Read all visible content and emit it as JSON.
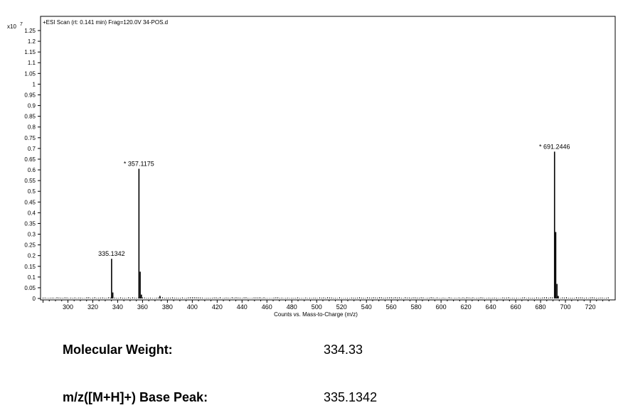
{
  "chart_data": {
    "type": "bar",
    "title": "+ESI Scan (rt: 0.141 min) Frag=120.0V 34-POS.d",
    "xlabel": "Counts vs. Mass-to-Charge (m/z)",
    "ylabel": "",
    "y_multiplier_label": "x10",
    "y_multiplier_exponent": "7",
    "xlim": [
      278,
      740
    ],
    "ylim": [
      0,
      1.25
    ],
    "x_ticks": [
      300,
      320,
      340,
      360,
      380,
      400,
      420,
      440,
      460,
      480,
      500,
      520,
      540,
      560,
      580,
      600,
      620,
      640,
      660,
      680,
      700,
      720
    ],
    "y_ticks": [
      "0",
      "0.05",
      "0.1",
      "0.15",
      "0.2",
      "0.25",
      "0.3",
      "0.35",
      "0.4",
      "0.45",
      "0.5",
      "0.55",
      "0.6",
      "0.65",
      "0.7",
      "0.75",
      "0.8",
      "0.85",
      "0.9",
      "0.95",
      "1",
      "1.05",
      "1.1",
      "1.15",
      "1.2",
      "1.25"
    ],
    "peaks": [
      {
        "x": 335.13,
        "y": 0.185
      },
      {
        "x": 336.1,
        "y": 0.028
      },
      {
        "x": 357.12,
        "y": 0.605
      },
      {
        "x": 358.1,
        "y": 0.125
      },
      {
        "x": 359.1,
        "y": 0.018
      },
      {
        "x": 374.0,
        "y": 0.012
      },
      {
        "x": 691.24,
        "y": 0.685
      },
      {
        "x": 692.2,
        "y": 0.31
      },
      {
        "x": 693.2,
        "y": 0.068
      },
      {
        "x": 694.2,
        "y": 0.012
      }
    ],
    "noise_range": [
      280,
      735
    ],
    "annotations": [
      {
        "x": 335.13,
        "y": 0.185,
        "text": "335.1342",
        "marked": false
      },
      {
        "x": 357.12,
        "y": 0.605,
        "text": "357.1175",
        "marked": true
      },
      {
        "x": 691.24,
        "y": 0.685,
        "text": "691.2446",
        "marked": true
      }
    ],
    "annotation_mark": "*",
    "grid": false,
    "legend": "none"
  },
  "info": {
    "molecular_weight_label": "Molecular Weight:",
    "molecular_weight_value": "334.33",
    "base_peak_label": "m/z([M+H]+) Base Peak:",
    "base_peak_value": "335.1342"
  }
}
